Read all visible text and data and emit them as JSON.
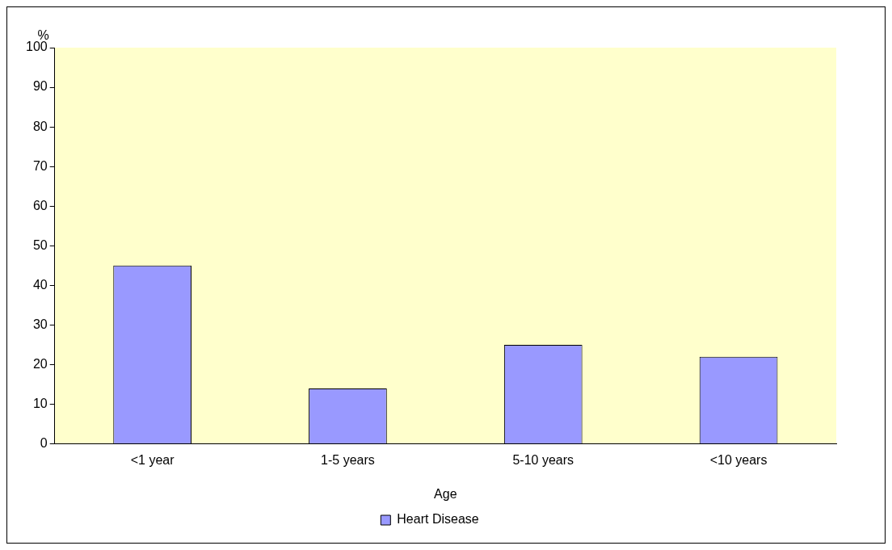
{
  "chart_data": {
    "type": "bar",
    "xlabel": "Age",
    "ylabel": "%",
    "categories": [
      "<1 year",
      "1-5 years",
      "5-10 years",
      "<10 years"
    ],
    "series": [
      {
        "name": "Heart Disease",
        "color": "#9999ff",
        "values": [
          45,
          14,
          25,
          22
        ]
      }
    ],
    "ylim": [
      0,
      100
    ],
    "yticks": [
      0,
      10,
      20,
      30,
      40,
      50,
      60,
      70,
      80,
      90,
      100
    ],
    "grid": false,
    "legend": "bottom"
  }
}
